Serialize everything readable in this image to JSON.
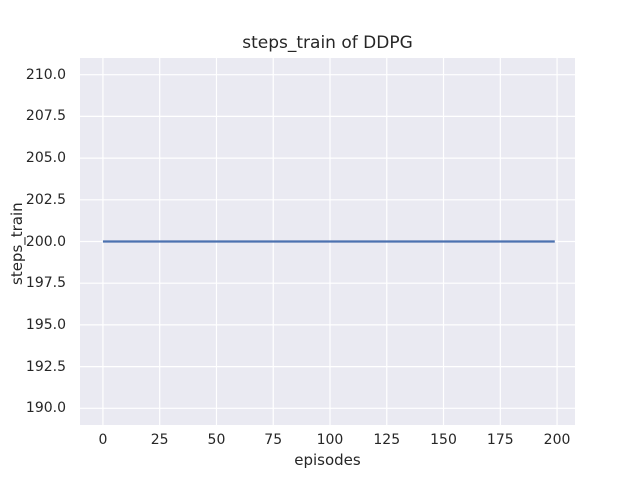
{
  "figure": {
    "background": "#ffffff",
    "plot_background": "#eaeaf2",
    "grid_color": "#ffffff",
    "text_color": "#262626"
  },
  "chart_data": {
    "type": "line",
    "title": "steps_train of DDPG",
    "xlabel": "episodes",
    "ylabel": "steps_train",
    "xlim": [
      -10.1,
      207.9
    ],
    "ylim": [
      189.0,
      211.0
    ],
    "x_ticks": [
      0,
      25,
      50,
      75,
      100,
      125,
      150,
      175,
      200
    ],
    "x_tick_labels": [
      "0",
      "25",
      "50",
      "75",
      "100",
      "125",
      "150",
      "175",
      "200"
    ],
    "y_ticks": [
      210.0,
      207.5,
      205.0,
      202.5,
      200.0,
      197.5,
      195.0,
      192.5,
      190.0
    ],
    "y_tick_labels": [
      "210.0",
      "207.5",
      "205.0",
      "202.5",
      "200.0",
      "197.5",
      "195.0",
      "192.5",
      "190.0"
    ],
    "grid": true,
    "legend_position": "none",
    "series": [
      {
        "name": "steps_train",
        "color": "#4c72b0",
        "line_width": 2.2,
        "x": [
          0,
          199
        ],
        "y": [
          200,
          200
        ]
      }
    ]
  }
}
